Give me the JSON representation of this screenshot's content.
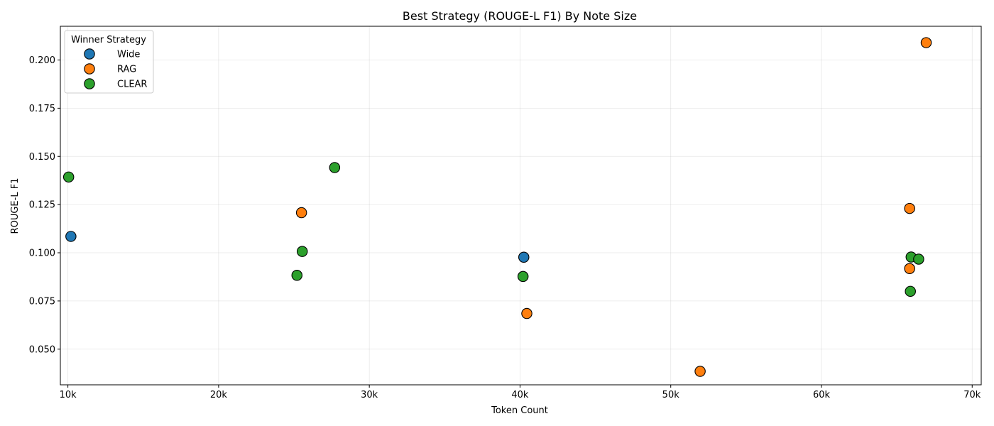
{
  "chart_data": {
    "type": "scatter",
    "title": "Best Strategy (ROUGE-L F1) By Note Size",
    "xlabel": "Token Count",
    "ylabel": "ROUGE-L F1",
    "xlim": [
      9500,
      70600
    ],
    "ylim": [
      0.0315,
      0.2175
    ],
    "x_ticks": [
      10000,
      20000,
      30000,
      40000,
      50000,
      60000,
      70000
    ],
    "x_tick_labels": [
      "10k",
      "20k",
      "30k",
      "40k",
      "50k",
      "60k",
      "70k"
    ],
    "y_ticks": [
      0.05,
      0.075,
      0.1,
      0.125,
      0.15,
      0.175,
      0.2
    ],
    "y_tick_labels": [
      "0.050",
      "0.075",
      "0.100",
      "0.125",
      "0.150",
      "0.175",
      "0.200"
    ],
    "grid": true,
    "legend": {
      "title": "Winner Strategy",
      "position": "upper-left"
    },
    "series": [
      {
        "name": "Wide",
        "color": "#1f77b4",
        "points": [
          {
            "x": 10200,
            "y": 0.1085
          },
          {
            "x": 40250,
            "y": 0.0977
          }
        ]
      },
      {
        "name": "RAG",
        "color": "#ff7f0e",
        "points": [
          {
            "x": 25500,
            "y": 0.1208
          },
          {
            "x": 40450,
            "y": 0.0685
          },
          {
            "x": 51950,
            "y": 0.0385
          },
          {
            "x": 65850,
            "y": 0.123
          },
          {
            "x": 65850,
            "y": 0.0918
          },
          {
            "x": 66950,
            "y": 0.209
          }
        ]
      },
      {
        "name": "CLEAR",
        "color": "#2ca02c",
        "points": [
          {
            "x": 10050,
            "y": 0.1393
          },
          {
            "x": 25200,
            "y": 0.0883
          },
          {
            "x": 25550,
            "y": 0.1007
          },
          {
            "x": 27700,
            "y": 0.1442
          },
          {
            "x": 40200,
            "y": 0.0877
          },
          {
            "x": 65900,
            "y": 0.08
          },
          {
            "x": 65950,
            "y": 0.0978
          },
          {
            "x": 66450,
            "y": 0.0967
          }
        ]
      }
    ]
  }
}
